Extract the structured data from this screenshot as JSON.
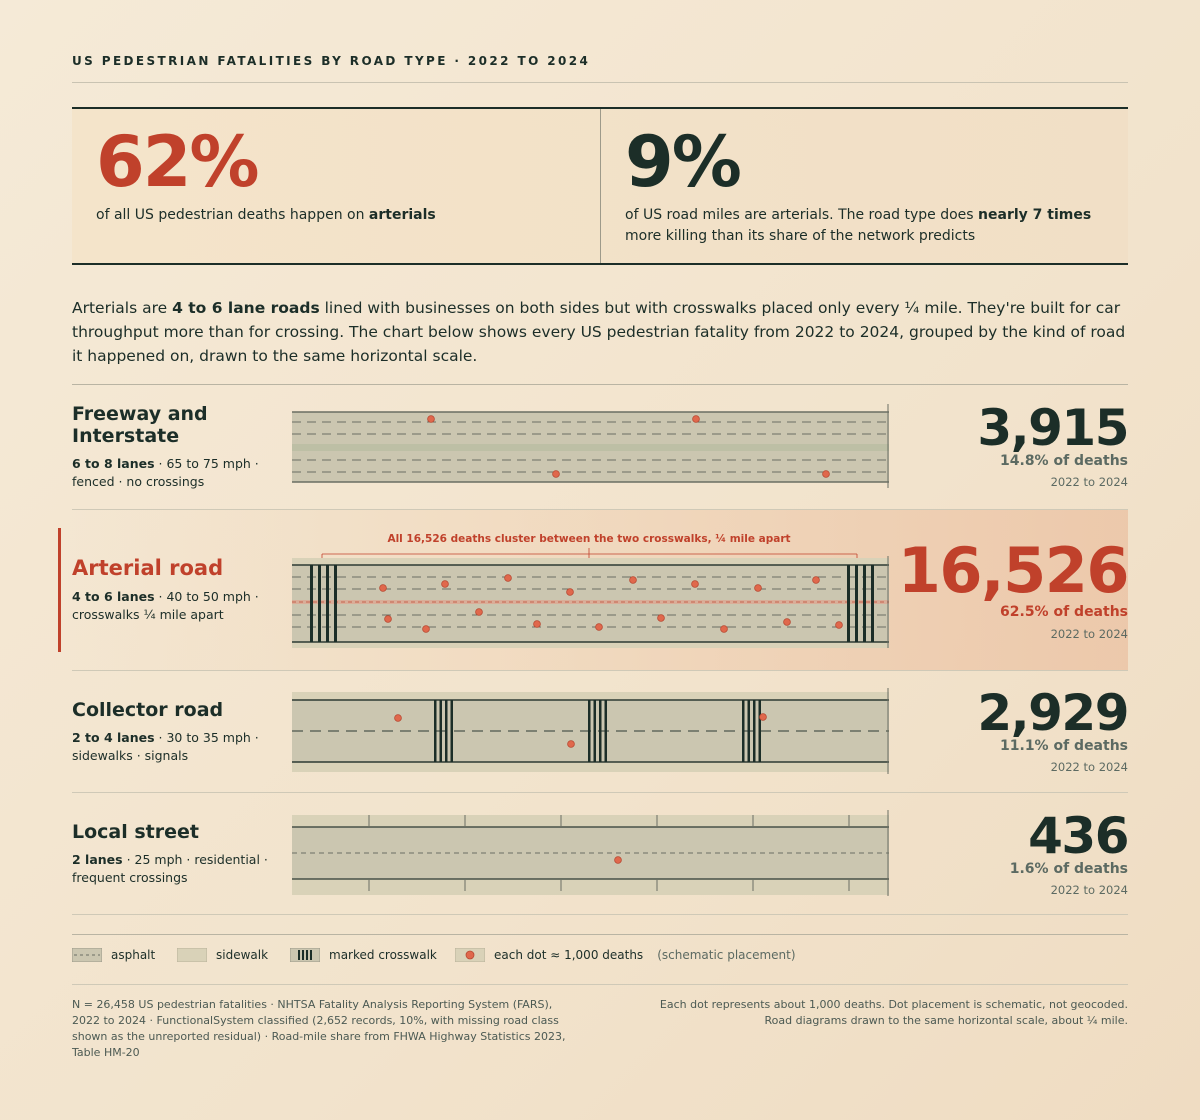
{
  "kicker": "US PEDESTRIAN FATALITIES BY ROAD TYPE · 2022 TO 2024",
  "stats": [
    {
      "value": "62%",
      "text_before": "of all US pedestrian deaths happen on ",
      "text_bold": "arterials",
      "text_after": ""
    },
    {
      "value": "9%",
      "text_before": "of US road miles are arterials. The road type does ",
      "text_bold": "nearly 7 times",
      "text_after": " more killing than its share of the network predicts"
    }
  ],
  "intro": {
    "before": "Arterials are ",
    "bold": "4 to 6 lane roads",
    "after": " lined with businesses on both sides but with crosswalks placed only every ¼ mile. They're built for car throughput more than for crossing. The chart below shows every US pedestrian fatality from 2022 to 2024, grouped by the kind of road it happened on, drawn to the same horizontal scale."
  },
  "arterial_annotation": "All 16,526 deaths cluster between the two crosswalks, ¼ mile apart",
  "colors": {
    "accent": "#c0412b",
    "ink": "#1c2e28",
    "asphalt": "#cbc6b0",
    "sidewalk": "#d9d2b8",
    "dot": "#e0684c"
  },
  "chart_data": {
    "type": "table",
    "title": "US PEDESTRIAN FATALITIES BY ROAD TYPE · 2022 TO 2024",
    "categories": [
      "Freeway and Interstate",
      "Arterial road",
      "Collector road",
      "Local street"
    ],
    "rows": [
      {
        "name": "Freeway and Interstate",
        "lanes": "6 to 8 lanes",
        "detail": " · 65 to 75 mph · fenced · no crossings",
        "deaths": 3915,
        "deaths_label": "3,915",
        "share_label": "14.8% of deaths",
        "period": "2022 to 2024"
      },
      {
        "name": "Arterial road",
        "lanes": "4 to 6 lanes",
        "detail": " · 40 to 50 mph · crosswalks ¼ mile apart",
        "deaths": 16526,
        "deaths_label": "16,526",
        "share_label": "62.5% of deaths",
        "period": "2022 to 2024"
      },
      {
        "name": "Collector road",
        "lanes": "2 to 4 lanes",
        "detail": " · 30 to 35 mph · sidewalks · signals",
        "deaths": 2929,
        "deaths_label": "2,929",
        "share_label": "11.1% of deaths",
        "period": "2022 to 2024"
      },
      {
        "name": "Local street",
        "lanes": "2 lanes",
        "detail": " · 25 mph · residential · frequent crossings",
        "deaths": 436,
        "deaths_label": "436",
        "share_label": "1.6% of deaths",
        "period": "2022 to 2024"
      }
    ],
    "dot_unit": 1000
  },
  "legend": {
    "asphalt": "asphalt",
    "sidewalk": "sidewalk",
    "crosswalk": "marked crosswalk",
    "dot": "each dot ≈ 1,000 deaths",
    "note": "(schematic placement)"
  },
  "footer": {
    "left": "N = 26,458 US pedestrian fatalities · NHTSA Fatality Analysis Reporting System (FARS), 2022 to 2024 · FunctionalSystem classified (2,652 records, 10%, with missing road class shown as the unreported residual) · Road-mile share from FHWA Highway Statistics 2023, Table HM-20",
    "right": "Each dot represents about 1,000 deaths. Dot placement is schematic, not geocoded. Road diagrams drawn to the same horizontal scale, about ¼ mile."
  }
}
